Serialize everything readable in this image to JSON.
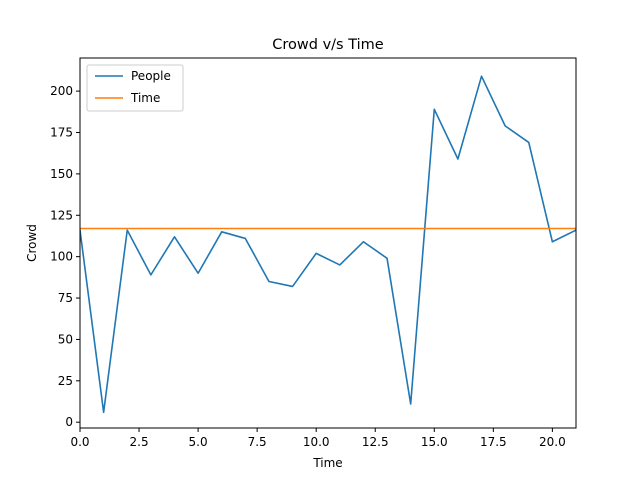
{
  "chart_data": {
    "type": "line",
    "title": "Crowd v/s Time",
    "xlabel": "Time",
    "ylabel": "Crowd",
    "xlim": [
      0,
      21
    ],
    "ylim": [
      -3.5,
      220
    ],
    "x_ticks": [
      0,
      2.5,
      5,
      7.5,
      10,
      12.5,
      15,
      17.5,
      20
    ],
    "x_tick_labels": [
      "0.0",
      "2.5",
      "5.0",
      "7.5",
      "10.0",
      "12.5",
      "15.0",
      "17.5",
      "20.0"
    ],
    "y_ticks": [
      0,
      25,
      50,
      75,
      100,
      125,
      150,
      175,
      200
    ],
    "y_tick_labels": [
      "0",
      "25",
      "50",
      "75",
      "100",
      "125",
      "150",
      "175",
      "200"
    ],
    "grid": false,
    "legend": "top-left",
    "series": [
      {
        "name": "People",
        "color": "#1f77b4",
        "x": [
          0,
          1,
          2,
          3,
          4,
          5,
          6,
          7,
          8,
          9,
          10,
          11,
          12,
          13,
          14,
          15,
          16,
          17,
          18,
          19,
          20,
          21
        ],
        "values": [
          116,
          6,
          116,
          89,
          112,
          90,
          115,
          111,
          85,
          82,
          102,
          95,
          109,
          99,
          11,
          189,
          159,
          209,
          179,
          169,
          109,
          116
        ]
      },
      {
        "name": "Time",
        "color": "#ff7f0e",
        "x": [
          0,
          21
        ],
        "values": [
          117,
          117
        ]
      }
    ]
  }
}
